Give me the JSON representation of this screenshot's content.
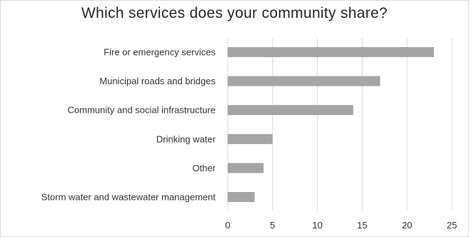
{
  "chart_data": {
    "type": "bar",
    "orientation": "horizontal",
    "title": "Which services does your community share?",
    "categories": [
      "Fire or emergency services",
      "Municipal roads and bridges",
      "Community and social infrastructure",
      "Drinking water",
      "Other",
      "Storm water and wastewater management"
    ],
    "values": [
      23,
      17,
      14,
      5,
      4,
      3
    ],
    "xticks": [
      "0",
      "5",
      "10",
      "15",
      "20",
      "25"
    ],
    "xlim": [
      0,
      25
    ],
    "grid": "vertical",
    "bar_color": "#a5a5a5"
  }
}
